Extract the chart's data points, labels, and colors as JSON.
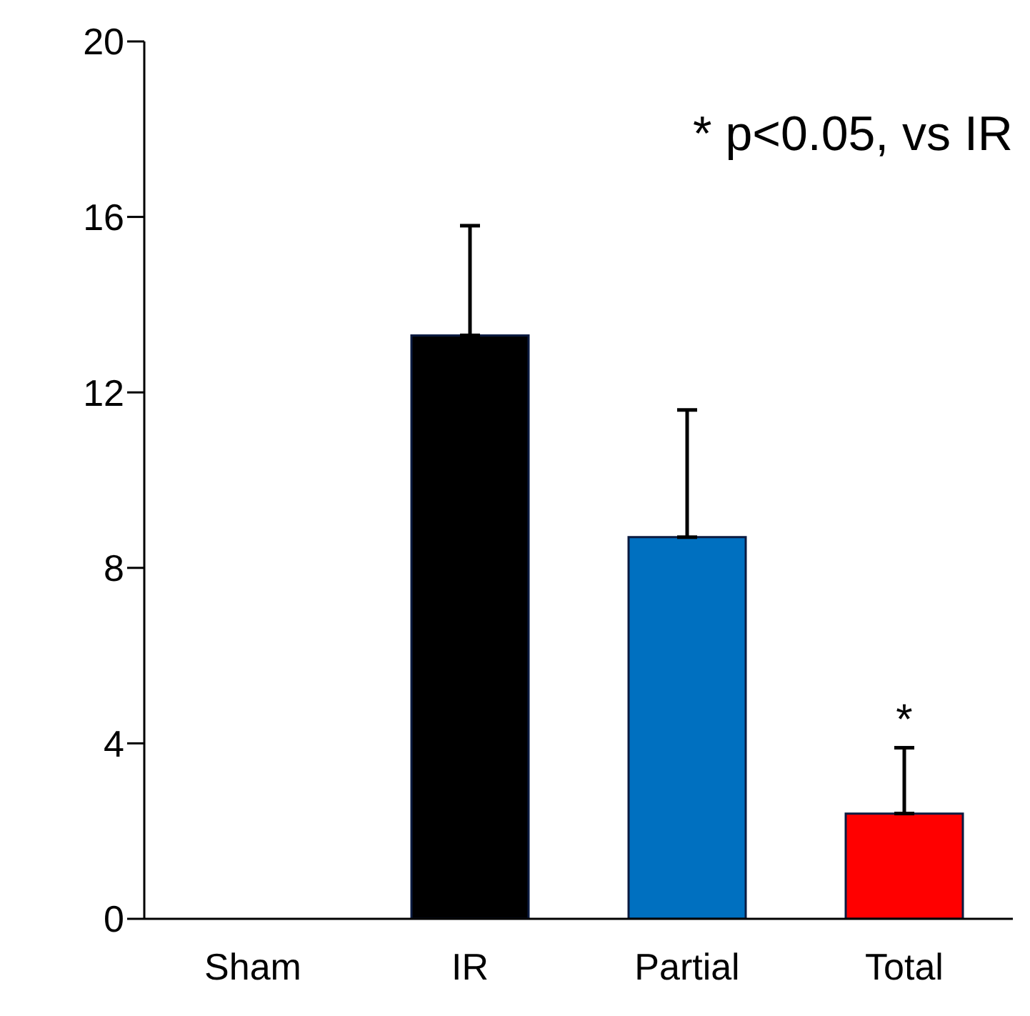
{
  "chart_data": {
    "type": "bar",
    "categories": [
      "Sham",
      "IR",
      "Partial",
      "Total"
    ],
    "values": [
      0,
      13.3,
      8.7,
      2.4
    ],
    "colors": [
      "#000000",
      "#000000",
      "#0070c0",
      "#ff0000"
    ],
    "errors": [
      null,
      [
        13.3,
        15.8
      ],
      [
        8.7,
        11.6
      ],
      [
        2.4,
        3.9
      ]
    ],
    "ylim": [
      0,
      20
    ],
    "yticks": [
      0,
      4,
      8,
      12,
      16,
      20
    ],
    "grid": false,
    "legend": false,
    "annotations": [
      "* p<0.05, vs IR",
      {
        "text": "*",
        "x": "Total",
        "y": 3.9
      }
    ]
  }
}
